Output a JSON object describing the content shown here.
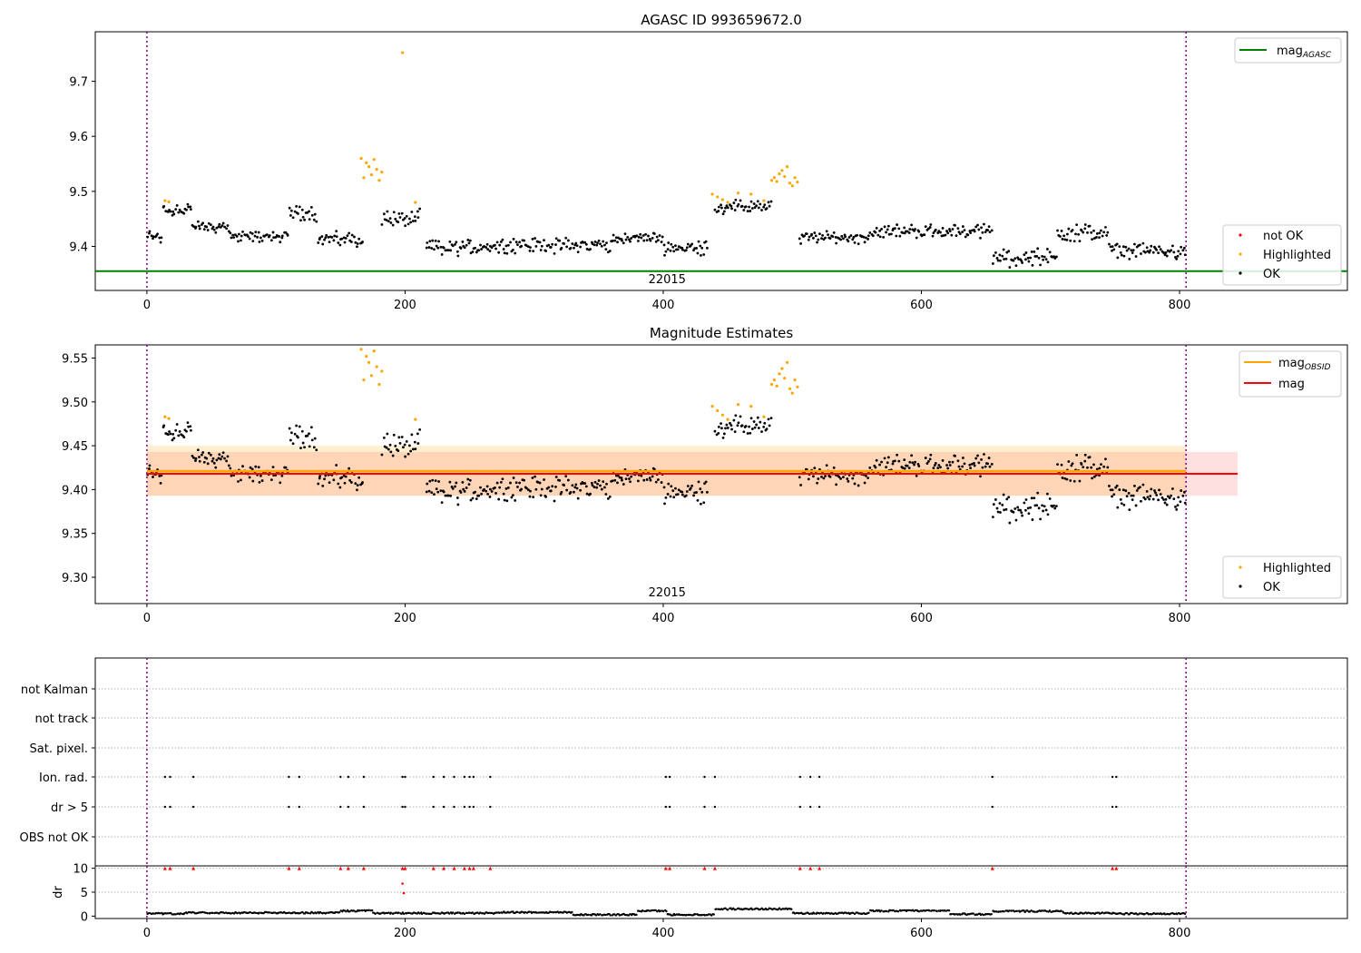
{
  "chart_data": [
    {
      "type": "scatter",
      "title": "AGASC ID 993659672.0",
      "xlim": [
        -40,
        930
      ],
      "ylim": [
        9.32,
        9.79
      ],
      "xticks": [
        0,
        200,
        400,
        600,
        800
      ],
      "yticks": [
        9.4,
        9.5,
        9.6,
        9.7
      ],
      "obsid_label": "22015",
      "obs_bounds": [
        0,
        805
      ],
      "mag_agasc": 9.355,
      "colors": {
        "ok": "#000000",
        "highlighted": "#ffa500",
        "not_ok": "#ff0000",
        "agasc": "#008000",
        "bounds": "#800080"
      },
      "highlighted_points": [
        {
          "x": 14,
          "y": 9.483
        },
        {
          "x": 17,
          "y": 9.481
        },
        {
          "x": 166,
          "y": 9.56
        },
        {
          "x": 168,
          "y": 9.525
        },
        {
          "x": 170,
          "y": 9.552
        },
        {
          "x": 172,
          "y": 9.545
        },
        {
          "x": 174,
          "y": 9.53
        },
        {
          "x": 176,
          "y": 9.558
        },
        {
          "x": 178,
          "y": 9.54
        },
        {
          "x": 180,
          "y": 9.52
        },
        {
          "x": 182,
          "y": 9.535
        },
        {
          "x": 198,
          "y": 9.752
        },
        {
          "x": 208,
          "y": 9.48
        },
        {
          "x": 438,
          "y": 9.495
        },
        {
          "x": 442,
          "y": 9.49
        },
        {
          "x": 446,
          "y": 9.485
        },
        {
          "x": 450,
          "y": 9.48
        },
        {
          "x": 458,
          "y": 9.497
        },
        {
          "x": 468,
          "y": 9.495
        },
        {
          "x": 478,
          "y": 9.483
        },
        {
          "x": 484,
          "y": 9.52
        },
        {
          "x": 486,
          "y": 9.525
        },
        {
          "x": 488,
          "y": 9.518
        },
        {
          "x": 490,
          "y": 9.532
        },
        {
          "x": 492,
          "y": 9.538
        },
        {
          "x": 494,
          "y": 9.527
        },
        {
          "x": 496,
          "y": 9.545
        },
        {
          "x": 498,
          "y": 9.515
        },
        {
          "x": 500,
          "y": 9.51
        },
        {
          "x": 502,
          "y": 9.525
        },
        {
          "x": 504,
          "y": 9.517
        }
      ],
      "ok_series": {
        "x_range": [
          0,
          805
        ],
        "segments": [
          {
            "x0": 0,
            "x1": 12,
            "mean": 9.418,
            "jitter": 0.01
          },
          {
            "x0": 12,
            "x1": 35,
            "mean": 9.467,
            "jitter": 0.012
          },
          {
            "x0": 35,
            "x1": 65,
            "mean": 9.435,
            "jitter": 0.008
          },
          {
            "x0": 65,
            "x1": 110,
            "mean": 9.418,
            "jitter": 0.008
          },
          {
            "x0": 110,
            "x1": 132,
            "mean": 9.462,
            "jitter": 0.012
          },
          {
            "x0": 132,
            "x1": 168,
            "mean": 9.413,
            "jitter": 0.01
          },
          {
            "x0": 182,
            "x1": 212,
            "mean": 9.45,
            "jitter": 0.012
          },
          {
            "x0": 216,
            "x1": 260,
            "mean": 9.398,
            "jitter": 0.012
          },
          {
            "x0": 260,
            "x1": 360,
            "mean": 9.402,
            "jitter": 0.01
          },
          {
            "x0": 360,
            "x1": 400,
            "mean": 9.415,
            "jitter": 0.007
          },
          {
            "x0": 400,
            "x1": 435,
            "mean": 9.398,
            "jitter": 0.01
          },
          {
            "x0": 440,
            "x1": 484,
            "mean": 9.472,
            "jitter": 0.01
          },
          {
            "x0": 505,
            "x1": 560,
            "mean": 9.416,
            "jitter": 0.008
          },
          {
            "x0": 560,
            "x1": 655,
            "mean": 9.428,
            "jitter": 0.009
          },
          {
            "x0": 655,
            "x1": 705,
            "mean": 9.38,
            "jitter": 0.012
          },
          {
            "x0": 705,
            "x1": 745,
            "mean": 9.425,
            "jitter": 0.012
          },
          {
            "x0": 745,
            "x1": 805,
            "mean": 9.392,
            "jitter": 0.01
          }
        ]
      },
      "legend_upper": {
        "label_main": "mag",
        "label_sub": "AGASC",
        "placement": "top-right"
      },
      "legend_lower": {
        "items": [
          "not OK",
          "Highlighted",
          "OK"
        ],
        "placement": "bottom-right"
      }
    },
    {
      "type": "scatter",
      "title": "Magnitude Estimates",
      "xlim": [
        -40,
        930
      ],
      "ylim": [
        9.27,
        9.565
      ],
      "xticks": [
        0,
        200,
        400,
        600,
        800
      ],
      "yticks": [
        9.3,
        9.35,
        9.4,
        9.45,
        9.5,
        9.55
      ],
      "obsid_label": "22015",
      "mag_obsid": 9.421,
      "mag_obsid_band": [
        9.393,
        9.45
      ],
      "mag_obsid_range": [
        0,
        805
      ],
      "mag": 9.418,
      "mag_band": [
        9.393,
        9.443
      ],
      "mag_range": [
        0,
        845
      ],
      "colors": {
        "mag_obsid": "#ffa500",
        "mag": "#ff0000",
        "mag_obsid_band": "#ffa50026",
        "mag_band": "#ff00001f"
      },
      "legend_upper": {
        "items": [
          {
            "label_main": "mag",
            "label_sub": "OBSID"
          },
          {
            "label_main": "mag",
            "label_sub": ""
          }
        ],
        "placement": "top-right"
      },
      "legend_lower": {
        "items": [
          "Highlighted",
          "OK"
        ],
        "placement": "bottom-right"
      }
    },
    {
      "type": "scatter",
      "title": "",
      "xlim": [
        -40,
        930
      ],
      "categories": [
        "OBS not OK",
        "dr > 5",
        "Ion. rad.",
        "Sat. pixel.",
        "not track",
        "not Kalman"
      ],
      "flag_x": [
        14,
        18,
        36,
        110,
        118,
        150,
        156,
        168,
        198,
        200,
        222,
        230,
        238,
        246,
        250,
        253,
        266,
        402,
        405,
        432,
        440,
        506,
        514,
        521,
        655,
        748,
        751
      ],
      "flag_rows": [
        "dr > 5",
        "Ion. rad."
      ]
    },
    {
      "type": "scatter",
      "title": "",
      "ylabel": "dr",
      "xlim": [
        -40,
        930
      ],
      "ylim": [
        -0.5,
        10.5
      ],
      "xticks": [
        0,
        200,
        400,
        600,
        800
      ],
      "yticks": [
        0,
        5,
        10
      ],
      "clip_value": 10,
      "extra_red_points": [
        {
          "x": 198,
          "y": 6.8
        },
        {
          "x": 199,
          "y": 4.8
        }
      ],
      "dr_segments": [
        {
          "x0": 0,
          "x1": 30,
          "mean": 0.5
        },
        {
          "x0": 30,
          "x1": 150,
          "mean": 0.7
        },
        {
          "x0": 150,
          "x1": 175,
          "mean": 1.1
        },
        {
          "x0": 175,
          "x1": 270,
          "mean": 0.6
        },
        {
          "x0": 270,
          "x1": 330,
          "mean": 0.8
        },
        {
          "x0": 330,
          "x1": 380,
          "mean": 0.3
        },
        {
          "x0": 380,
          "x1": 403,
          "mean": 1.1
        },
        {
          "x0": 403,
          "x1": 440,
          "mean": 0.3
        },
        {
          "x0": 440,
          "x1": 500,
          "mean": 1.5
        },
        {
          "x0": 500,
          "x1": 560,
          "mean": 0.6
        },
        {
          "x0": 560,
          "x1": 622,
          "mean": 1.1
        },
        {
          "x0": 622,
          "x1": 655,
          "mean": 0.4
        },
        {
          "x0": 655,
          "x1": 710,
          "mean": 1.0
        },
        {
          "x0": 710,
          "x1": 750,
          "mean": 0.6
        },
        {
          "x0": 750,
          "x1": 805,
          "mean": 0.5
        }
      ]
    }
  ]
}
